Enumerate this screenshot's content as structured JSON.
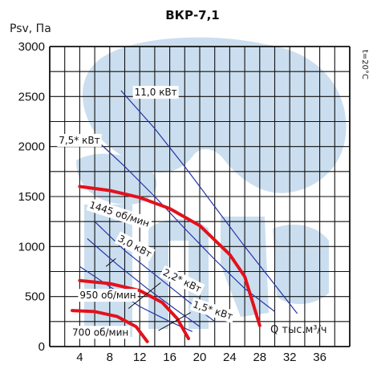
{
  "chart_data": {
    "type": "line",
    "title": "ВКР-7,1",
    "ylabel": "Psv, Па",
    "xlabel": "Q тыс.м³/ч",
    "side_note": "t=20°C",
    "xlim": [
      0,
      40
    ],
    "ylim": [
      0,
      3000
    ],
    "x_ticks": [
      "4",
      "8",
      "12",
      "16",
      "20",
      "24",
      "28",
      "32",
      "36"
    ],
    "y_ticks": [
      "0",
      "500",
      "1000",
      "1500",
      "2000",
      "2500",
      "3000"
    ],
    "grid": true,
    "colors": {
      "fan_curve": "#e3111b",
      "power_line": "#2534a8",
      "grid": "#111111",
      "watermark": "#b9d3ea"
    },
    "fan_curves": [
      {
        "name": "1445 об/мин",
        "points": [
          [
            4,
            1600
          ],
          [
            8,
            1560
          ],
          [
            12,
            1490
          ],
          [
            16,
            1380
          ],
          [
            20,
            1210
          ],
          [
            24,
            920
          ],
          [
            26,
            700
          ],
          [
            28,
            210
          ]
        ]
      },
      {
        "name": "950 об/мин",
        "points": [
          [
            4,
            660
          ],
          [
            8,
            630
          ],
          [
            12,
            560
          ],
          [
            15,
            440
          ],
          [
            17,
            280
          ],
          [
            18.5,
            80
          ]
        ]
      },
      {
        "name": "700 об/мин",
        "points": [
          [
            3,
            360
          ],
          [
            6,
            350
          ],
          [
            9,
            300
          ],
          [
            11.5,
            200
          ],
          [
            13,
            50
          ]
        ]
      }
    ],
    "power_lines": [
      {
        "name": "11,0 кВт",
        "points": [
          [
            9.5,
            2560
          ],
          [
            14,
            2180
          ],
          [
            18,
            1800
          ],
          [
            22,
            1400
          ],
          [
            26,
            1000
          ],
          [
            30,
            620
          ],
          [
            33,
            330
          ]
        ]
      },
      {
        "name": "7,5* кВт",
        "points": [
          [
            6,
            2080
          ],
          [
            10,
            1800
          ],
          [
            14,
            1500
          ],
          [
            18,
            1180
          ],
          [
            22,
            870
          ],
          [
            26,
            580
          ],
          [
            30,
            350
          ]
        ]
      },
      {
        "name": "3,0 кВт",
        "points": [
          [
            6,
            1250
          ],
          [
            10,
            960
          ],
          [
            14,
            720
          ],
          [
            18,
            480
          ],
          [
            22,
            250
          ]
        ]
      },
      {
        "name": "2,2* кВт",
        "points": [
          [
            5,
            1080
          ],
          [
            9,
            820
          ],
          [
            13,
            580
          ],
          [
            17,
            360
          ],
          [
            20,
            200
          ]
        ]
      },
      {
        "name": "1,5* кВт",
        "points": [
          [
            4,
            800
          ],
          [
            8,
            600
          ],
          [
            12,
            400
          ],
          [
            16,
            250
          ],
          [
            19,
            150
          ]
        ]
      }
    ]
  }
}
